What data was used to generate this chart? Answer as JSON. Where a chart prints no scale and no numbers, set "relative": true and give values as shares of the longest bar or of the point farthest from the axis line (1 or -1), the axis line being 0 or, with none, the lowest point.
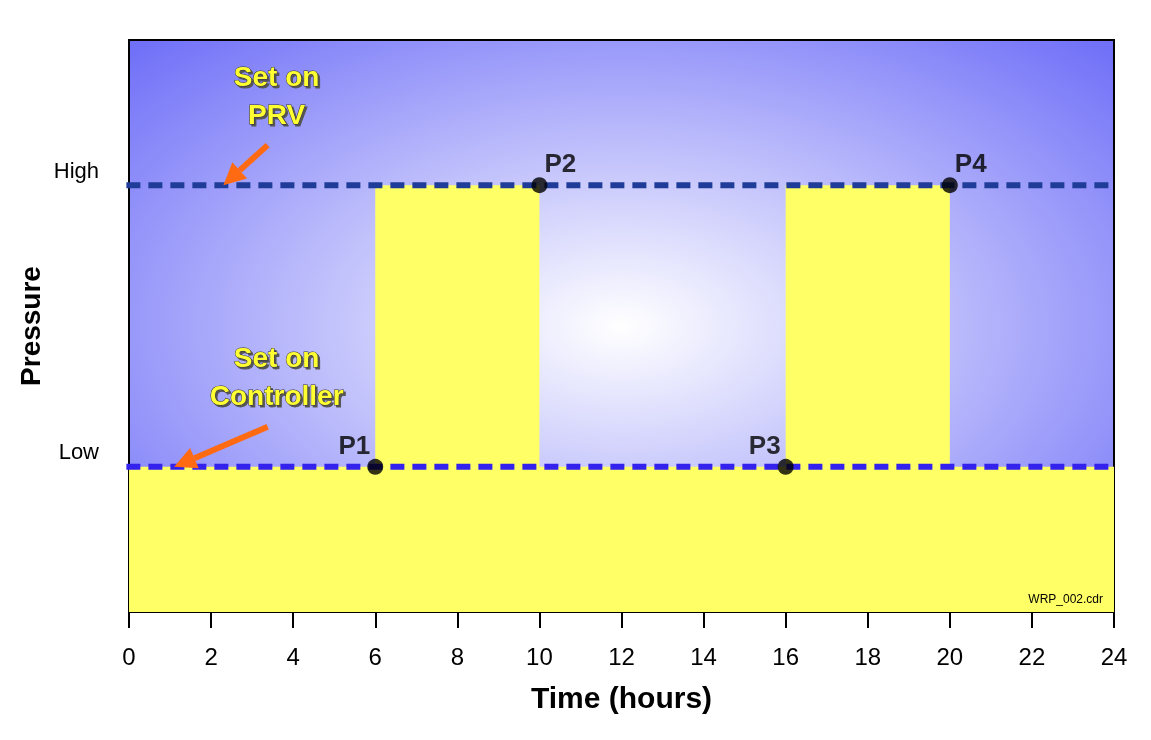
{
  "chart_data": {
    "type": "area",
    "relative": true,
    "xlabel": "Time (hours)",
    "ylabel": "Pressure",
    "xlim": [
      0,
      24
    ],
    "xticks": [
      0,
      2,
      4,
      6,
      8,
      10,
      12,
      14,
      16,
      18,
      20,
      22,
      24
    ],
    "series": [
      {
        "color": "#ffff66",
        "x": [
          0,
          6,
          10,
          16,
          20,
          24
        ],
        "values": [
          0.34,
          1,
          0.34,
          1,
          0.34,
          0.34
        ]
      },
      {
        "type": "scatter",
        "color": "#000000",
        "x": [
          6,
          10,
          16,
          20
        ],
        "values": [
          0.34,
          1,
          0.34,
          1
        ],
        "marker": "circle"
      }
    ],
    "ref_lines": [
      {
        "axis": "y",
        "value": 1,
        "label": "High",
        "color": "#1f3c99",
        "line_style": "dashed"
      },
      {
        "axis": "y",
        "value": 0.34,
        "label": "Low",
        "color": "#3322ee",
        "line_style": "dashed"
      }
    ],
    "annotations": [
      "Set on PRV",
      "Set on Controller",
      {
        "text": "P1",
        "x": 6,
        "y": 0.34
      },
      {
        "text": "P2",
        "x": 10,
        "y": 1
      },
      {
        "text": "P3",
        "x": 16,
        "y": 0.34
      },
      {
        "text": "P4",
        "x": 20,
        "y": 1
      },
      "WRP_002.cdr"
    ]
  }
}
